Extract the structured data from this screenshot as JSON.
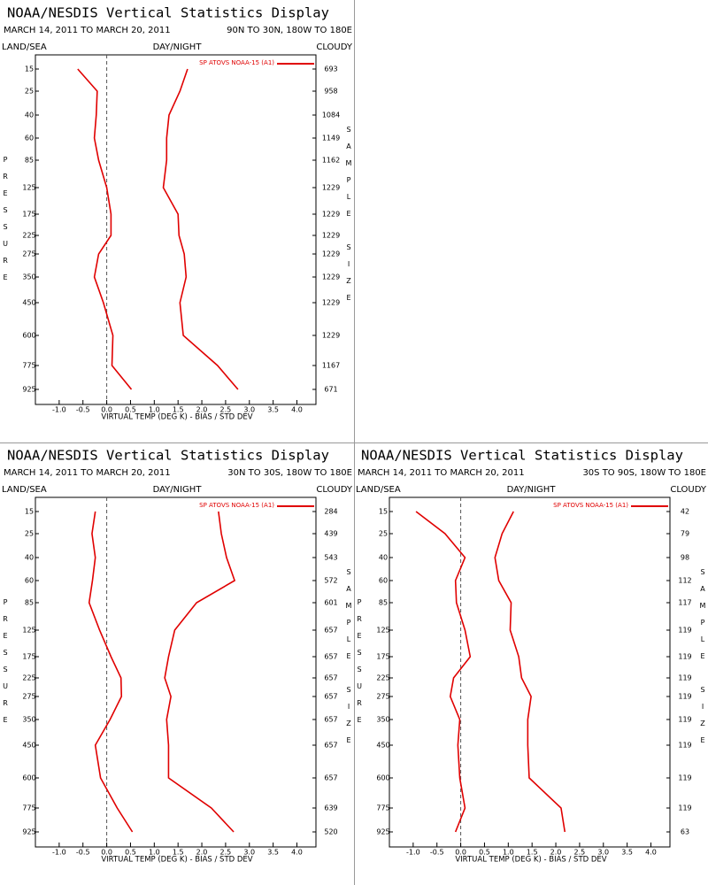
{
  "chart_data": [
    {
      "type": "line",
      "title": "NOAA/NESDIS Vertical Statistics Display",
      "subtitle": "MARCH 14, 2011 TO MARCH 20, 2011",
      "region": "90N TO 30N, 180W TO 180E",
      "land_sea": "LAND/SEA",
      "day_night": "DAY/NIGHT",
      "cloudy": "CLOUDY",
      "y_label": "PRESSURE",
      "y2_label": "SAMPLE SIZE",
      "x_label": "VIRTUAL TEMP (DEG K) - BIAS / STD DEV",
      "legend": "SP ATOVS NOAA-15 (A1)",
      "categories": [
        "15",
        "25",
        "40",
        "60",
        "85",
        "125",
        "175",
        "225",
        "275",
        "350",
        "450",
        "600",
        "775",
        "925"
      ],
      "sample_size": [
        693,
        958,
        1084,
        1149,
        1162,
        1229,
        1229,
        1229,
        1229,
        1229,
        1229,
        1229,
        1167,
        671
      ],
      "series": [
        {
          "color": "#e00000",
          "values": [
            -0.61,
            -0.2,
            -0.22,
            -0.26,
            -0.17,
            0.0,
            0.09,
            0.09,
            -0.17,
            -0.26,
            -0.07,
            0.13,
            0.11,
            0.52
          ]
        },
        {
          "color": "#e00000",
          "values": [
            1.7,
            1.54,
            1.31,
            1.26,
            1.26,
            1.19,
            1.5,
            1.52,
            1.63,
            1.67,
            1.54,
            1.61,
            2.33,
            2.76
          ]
        }
      ],
      "xlim": [
        -1.5,
        4.4
      ],
      "xticks": [
        {
          "value": -1,
          "label": "-1.0"
        },
        {
          "value": -0.5,
          "label": "-0.5"
        },
        {
          "value": 0,
          "label": "0.0"
        },
        {
          "value": 0.5,
          "label": "0.5"
        },
        {
          "value": 1,
          "label": "1.0"
        },
        {
          "value": 1.5,
          "label": "1.5"
        },
        {
          "value": 2,
          "label": "2.0"
        },
        {
          "value": 2.5,
          "label": "2.5"
        },
        {
          "value": 3,
          "label": "3.0"
        },
        {
          "value": 3.5,
          "label": "3.5"
        },
        {
          "value": 4,
          "label": "4.0"
        }
      ]
    },
    {
      "type": "line",
      "title": "NOAA/NESDIS Vertical Statistics Display",
      "subtitle": "MARCH 14, 2011 TO MARCH 20, 2011",
      "region": "30N TO 30S, 180W TO 180E",
      "land_sea": "LAND/SEA",
      "day_night": "DAY/NIGHT",
      "cloudy": "CLOUDY",
      "y_label": "PRESSURE",
      "y2_label": "SAMPLE SIZE",
      "x_label": "VIRTUAL TEMP (DEG K) - BIAS / STD DEV",
      "legend": "SP ATOVS NOAA-15 (A1)",
      "categories": [
        "15",
        "25",
        "40",
        "60",
        "85",
        "125",
        "175",
        "225",
        "275",
        "350",
        "450",
        "600",
        "775",
        "925"
      ],
      "sample_size": [
        284,
        439,
        543,
        572,
        601,
        657,
        657,
        657,
        657,
        657,
        657,
        657,
        639,
        520
      ],
      "series": [
        {
          "color": "#e00000",
          "values": [
            -0.24,
            -0.31,
            -0.24,
            -0.3,
            -0.37,
            -0.15,
            0.09,
            0.3,
            0.31,
            0.07,
            -0.24,
            -0.13,
            0.22,
            0.54
          ]
        },
        {
          "color": "#e00000",
          "values": [
            2.35,
            2.41,
            2.52,
            2.69,
            1.89,
            1.43,
            1.3,
            1.22,
            1.35,
            1.26,
            1.3,
            1.3,
            2.2,
            2.67
          ]
        }
      ],
      "xlim": [
        -1.5,
        4.4
      ],
      "xticks": [
        {
          "value": -1,
          "label": "-1.0"
        },
        {
          "value": -0.5,
          "label": "-0.5"
        },
        {
          "value": 0,
          "label": "0.0"
        },
        {
          "value": 0.5,
          "label": "0.5"
        },
        {
          "value": 1,
          "label": "1.0"
        },
        {
          "value": 1.5,
          "label": "1.5"
        },
        {
          "value": 2,
          "label": "2.0"
        },
        {
          "value": 2.5,
          "label": "2.5"
        },
        {
          "value": 3,
          "label": "3.0"
        },
        {
          "value": 3.5,
          "label": "3.5"
        },
        {
          "value": 4,
          "label": "4.0"
        }
      ]
    },
    {
      "type": "line",
      "title": "NOAA/NESDIS Vertical Statistics Display",
      "subtitle": "MARCH 14, 2011 TO MARCH 20, 2011",
      "region": "30S TO 90S, 180W TO 180E",
      "land_sea": "LAND/SEA",
      "day_night": "DAY/NIGHT",
      "cloudy": "CLOUDY",
      "y_label": "PRESSURE",
      "y2_label": "SAMPLE SIZE",
      "x_label": "VIRTUAL TEMP (DEG K) - BIAS / STD DEV",
      "legend": "SP ATOVS NOAA-15 (A1)",
      "categories": [
        "15",
        "25",
        "40",
        "60",
        "85",
        "125",
        "175",
        "225",
        "275",
        "350",
        "450",
        "600",
        "775",
        "925"
      ],
      "sample_size": [
        42,
        79,
        98,
        112,
        117,
        119,
        119,
        119,
        119,
        119,
        119,
        119,
        119,
        63
      ],
      "series": [
        {
          "color": "#e00000",
          "values": [
            -0.94,
            -0.33,
            0.09,
            -0.11,
            -0.09,
            0.09,
            0.2,
            -0.15,
            -0.22,
            -0.02,
            -0.06,
            -0.02,
            0.09,
            -0.11
          ]
        },
        {
          "color": "#e00000",
          "values": [
            1.11,
            0.87,
            0.72,
            0.8,
            1.06,
            1.04,
            1.22,
            1.28,
            1.48,
            1.41,
            1.41,
            1.44,
            2.11,
            2.19
          ]
        }
      ],
      "xlim": [
        -1.5,
        4.4
      ],
      "xticks": [
        {
          "value": -1,
          "label": "-1.0"
        },
        {
          "value": -0.5,
          "label": "-0.5"
        },
        {
          "value": 0,
          "label": "0.0"
        },
        {
          "value": 0.5,
          "label": "0.5"
        },
        {
          "value": 1,
          "label": "1.0"
        },
        {
          "value": 1.5,
          "label": "1.5"
        },
        {
          "value": 2,
          "label": "2.0"
        },
        {
          "value": 2.5,
          "label": "2.5"
        },
        {
          "value": 3,
          "label": "3.0"
        },
        {
          "value": 3.5,
          "label": "3.5"
        },
        {
          "value": 4,
          "label": "4.0"
        }
      ]
    }
  ]
}
